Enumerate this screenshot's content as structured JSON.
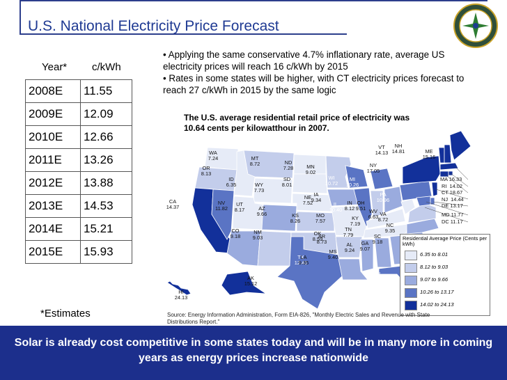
{
  "title": "U.S. National Electricity Price Forecast",
  "table": {
    "headers": [
      "Year*",
      "c/kWh"
    ],
    "rows": [
      [
        "2008E",
        "11.55"
      ],
      [
        "2009E",
        "12.09"
      ],
      [
        "2010E",
        "12.66"
      ],
      [
        "2011E",
        "13.26"
      ],
      [
        "2012E",
        "13.88"
      ],
      [
        "2013E",
        "14.53"
      ],
      [
        "2014E",
        "15.21"
      ],
      [
        "2015E",
        "15.93"
      ]
    ],
    "footnote": "*Estimates"
  },
  "bullets": [
    "• Applying the same conservative 4.7% inflationary rate, average US electricity prices will reach 16 c/kWh by 2015",
    "• Rates in some states will be higher, with CT electricity prices forecast to reach 27 c/kWh in 2015 by the same logic"
  ],
  "map": {
    "caption": "The U.S. average residential retail price of electricity was 10.64 cents per kilowatthour in 2007.",
    "states": [
      {
        "code": "WA",
        "value": "7.24"
      },
      {
        "code": "OR",
        "value": "8.13"
      },
      {
        "code": "CA",
        "value": "14.37"
      },
      {
        "code": "NV",
        "value": "11.82"
      },
      {
        "code": "ID",
        "value": "6.35"
      },
      {
        "code": "MT",
        "value": "8.72"
      },
      {
        "code": "WY",
        "value": "7.73"
      },
      {
        "code": "UT",
        "value": "8.17"
      },
      {
        "code": "AZ",
        "value": "9.66"
      },
      {
        "code": "CO",
        "value": "9.18"
      },
      {
        "code": "NM",
        "value": "9.03"
      },
      {
        "code": "ND",
        "value": "7.28"
      },
      {
        "code": "SD",
        "value": "8.01"
      },
      {
        "code": "NE",
        "value": "7.52"
      },
      {
        "code": "KS",
        "value": "8.26"
      },
      {
        "code": "OK",
        "value": "8.59"
      },
      {
        "code": "TX",
        "value": "12.41"
      },
      {
        "code": "MN",
        "value": "9.02"
      },
      {
        "code": "IA",
        "value": "9.34"
      },
      {
        "code": "MO",
        "value": "7.57"
      },
      {
        "code": "AR",
        "value": "8.73"
      },
      {
        "code": "LA",
        "value": "9.35"
      },
      {
        "code": "WI",
        "value": "10.72"
      },
      {
        "code": "IL",
        "value": "10.40"
      },
      {
        "code": "MI",
        "value": "10.26"
      },
      {
        "code": "IN",
        "value": "8.12"
      },
      {
        "code": "OH",
        "value": "9.51"
      },
      {
        "code": "KY",
        "value": "7.19"
      },
      {
        "code": "TN",
        "value": "7.79"
      },
      {
        "code": "MS",
        "value": "9.40"
      },
      {
        "code": "AL",
        "value": "9.24"
      },
      {
        "code": "GA",
        "value": "9.07"
      },
      {
        "code": "FL",
        "value": "11.20"
      },
      {
        "code": "SC",
        "value": "9.18"
      },
      {
        "code": "NC",
        "value": "9.35"
      },
      {
        "code": "VA",
        "value": "8.72"
      },
      {
        "code": "WV",
        "value": "6.63"
      },
      {
        "code": "PA",
        "value": "10.96"
      },
      {
        "code": "NY",
        "value": "17.05"
      },
      {
        "code": "VT",
        "value": "14.13"
      },
      {
        "code": "NH",
        "value": "14.81"
      },
      {
        "code": "ME",
        "value": "15.16"
      },
      {
        "code": "AK",
        "value": "15.12"
      },
      {
        "code": "HI",
        "value": "24.13"
      }
    ],
    "northeast_list": [
      {
        "code": "MA",
        "value": "16.33"
      },
      {
        "code": "RI",
        "value": "14.02"
      },
      {
        "code": "CT",
        "value": "18.67"
      },
      {
        "code": "NJ",
        "value": "14.44"
      },
      {
        "code": "DE",
        "value": "13.17"
      },
      {
        "code": "MD",
        "value": "11.77"
      },
      {
        "code": "DC",
        "value": "11.17"
      }
    ],
    "legend": {
      "title": "Residential Average Price (Cents per kWh)",
      "items": [
        {
          "label": "6.35 to 8.01",
          "color": "#e6ebf7"
        },
        {
          "label": "8.12 to 9.03",
          "color": "#c3cdeb"
        },
        {
          "label": "9.07 to 9.66",
          "color": "#9aabde"
        },
        {
          "label": "10.26 to 13.17",
          "color": "#5a74c4"
        },
        {
          "label": "14.02 to 24.13",
          "color": "#12309a"
        }
      ]
    },
    "source": "Source: Energy Information Administration, Form EIA-826, \"Monthly Electric Sales and Revenue with State Distributions Report.\""
  },
  "banner": "Solar is already cost competitive in some states today and will be in many more in coming years as energy prices increase nationwide",
  "colors": {
    "title": "#1f3a93",
    "banner": "#1c2f8c",
    "banner_text": "#ffffff"
  }
}
